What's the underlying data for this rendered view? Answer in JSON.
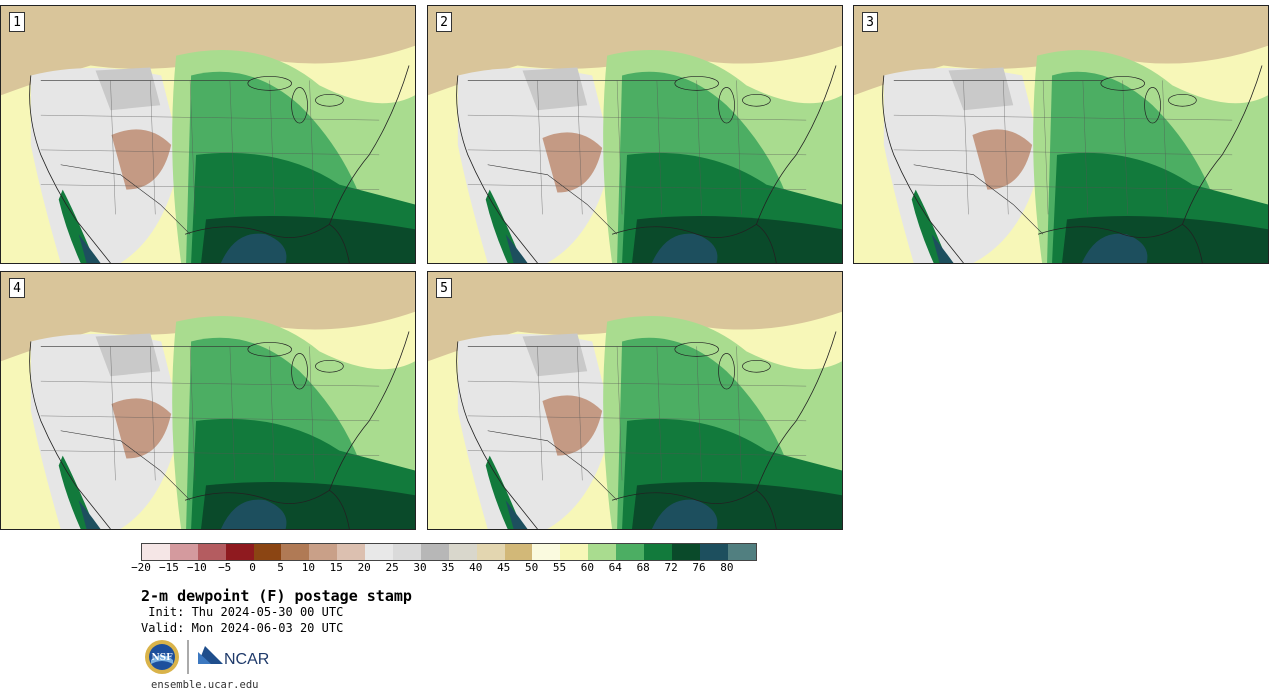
{
  "panels": [
    {
      "label": "1"
    },
    {
      "label": "2"
    },
    {
      "label": "3"
    },
    {
      "label": "4"
    },
    {
      "label": "5"
    }
  ],
  "colorbar": {
    "colors": [
      "#f5e6e6",
      "#d49a9e",
      "#b45c60",
      "#8f1a1f",
      "#8b4513",
      "#b07a55",
      "#c9a088",
      "#dcc0b0",
      "#e8e8e8",
      "#dadada",
      "#b7b7b7",
      "#d9d7cc",
      "#e3d6b0",
      "#d2b878",
      "#fafadf",
      "#f7f7b8",
      "#a9dc8f",
      "#4cae63",
      "#127a3c",
      "#0a4a2a",
      "#1d4f5e",
      "#517f80"
    ],
    "tick_labels": [
      "−20",
      "−15",
      "−10",
      "−5",
      "0",
      "5",
      "10",
      "15",
      "20",
      "25",
      "30",
      "35",
      "40",
      "45",
      "50",
      "55",
      "60",
      "64",
      "68",
      "72",
      "76",
      "80"
    ]
  },
  "title": "2-m dewpoint (F) postage stamp",
  "init": " Init: Thu 2024-05-30 00 UTC",
  "valid": "Valid: Mon 2024-06-03 20 UTC",
  "logos": {
    "nsf": "NSF",
    "ncar": "NCAR"
  },
  "site": "ensemble.ucar.edu"
}
